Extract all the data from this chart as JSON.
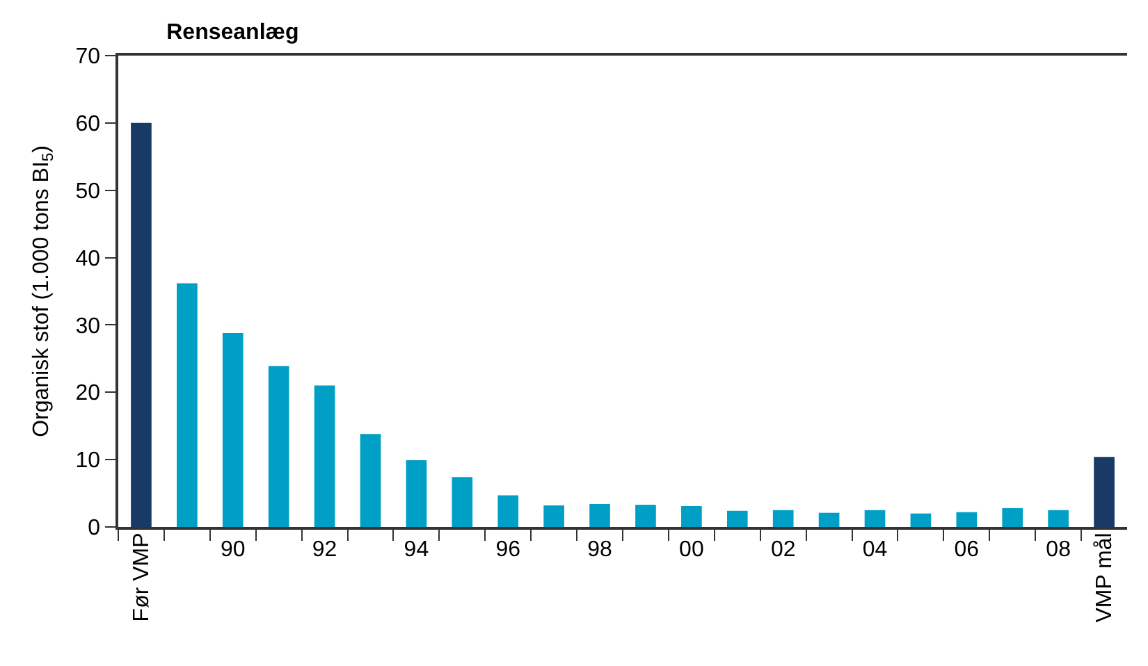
{
  "chart_data": {
    "type": "bar",
    "title": "Renseanlæg",
    "ylabel": "Organisk stof (1.000 tons BI$_{5}$)",
    "categories": [
      "Før VMP",
      null,
      "90",
      null,
      "92",
      null,
      "94",
      null,
      "96",
      null,
      "98",
      null,
      "00",
      null,
      "02",
      null,
      "04",
      null,
      "06",
      null,
      "08",
      "VMP mål"
    ],
    "values": [
      60,
      36.2,
      28.8,
      23.9,
      21.0,
      13.8,
      9.9,
      7.4,
      4.7,
      3.2,
      3.4,
      3.3,
      3.1,
      2.4,
      2.5,
      2.1,
      2.5,
      2.0,
      2.2,
      2.8,
      2.5,
      10.4
    ],
    "colors": [
      "#1a3a66",
      "#00a0c6",
      "#00a0c6",
      "#00a0c6",
      "#00a0c6",
      "#00a0c6",
      "#00a0c6",
      "#00a0c6",
      "#00a0c6",
      "#00a0c6",
      "#00a0c6",
      "#00a0c6",
      "#00a0c6",
      "#00a0c6",
      "#00a0c6",
      "#00a0c6",
      "#00a0c6",
      "#00a0c6",
      "#00a0c6",
      "#00a0c6",
      "#00a0c6",
      "#1a3a66"
    ],
    "ylim": [
      0,
      70
    ],
    "yticks": [
      0,
      10,
      20,
      30,
      40,
      50,
      60,
      70
    ]
  }
}
